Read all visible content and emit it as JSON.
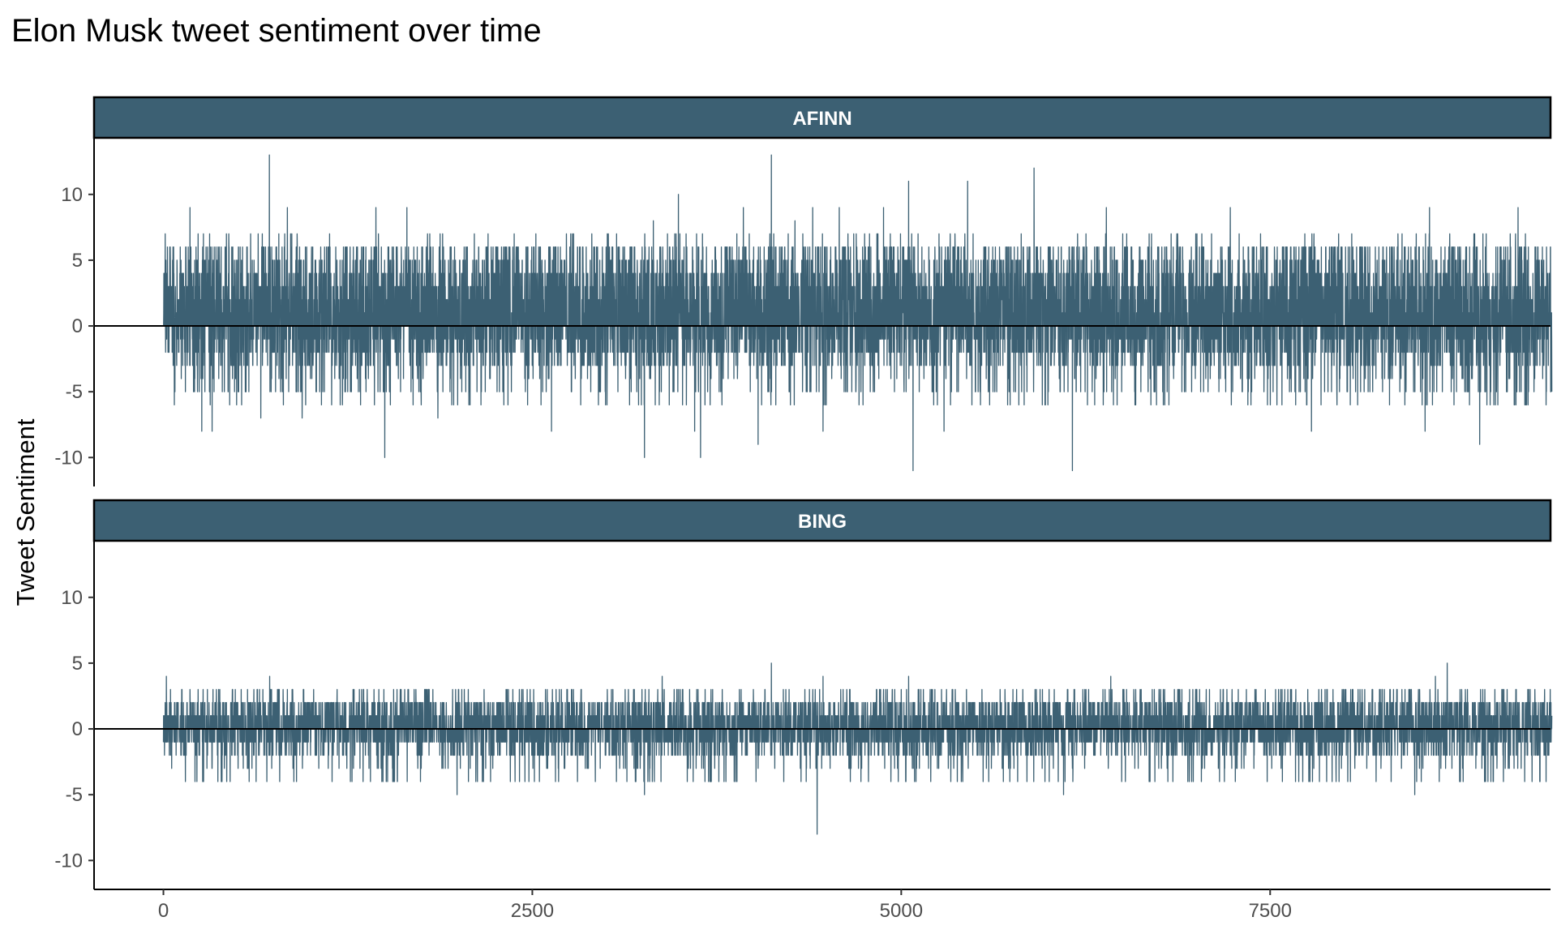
{
  "chart_data": {
    "type": "line",
    "title": "Elon Musk tweet sentiment over time",
    "xlabel": "",
    "ylabel": "Tweet Sentiment",
    "xlim": [
      -470,
      9400
    ],
    "ylim": [
      -12.2,
      14.3
    ],
    "x_ticks": [
      {
        "value": 0,
        "label": "0"
      },
      {
        "value": 2500,
        "label": "2500"
      },
      {
        "value": 5000,
        "label": "5000"
      },
      {
        "value": 7500,
        "label": "7500"
      }
    ],
    "y_ticks": [
      {
        "value": 10,
        "label": "10"
      },
      {
        "value": 5,
        "label": "5"
      },
      {
        "value": 0,
        "label": "0"
      },
      {
        "value": -5,
        "label": "-5"
      },
      {
        "value": -10,
        "label": "-10"
      }
    ],
    "grid": false,
    "reference_line": 0,
    "color": "#3c6073",
    "n_points": 9410,
    "panels": [
      {
        "name": "AFINN",
        "typical_min": -3,
        "typical_max": 4,
        "peaks": [
          {
            "x": 718,
            "y": 13
          },
          {
            "x": 4120,
            "y": 13
          },
          {
            "x": 5900,
            "y": 12
          },
          {
            "x": 5050,
            "y": 11
          },
          {
            "x": 5450,
            "y": 11
          },
          {
            "x": 180,
            "y": 9
          },
          {
            "x": 840,
            "y": 9
          },
          {
            "x": 940,
            "y": 9
          },
          {
            "x": 1440,
            "y": 9
          },
          {
            "x": 1650,
            "y": 9
          },
          {
            "x": 3490,
            "y": 10
          },
          {
            "x": 3930,
            "y": 9
          },
          {
            "x": 4400,
            "y": 9
          },
          {
            "x": 4580,
            "y": 9
          },
          {
            "x": 4880,
            "y": 9
          },
          {
            "x": 6390,
            "y": 9
          },
          {
            "x": 7230,
            "y": 9
          },
          {
            "x": 8580,
            "y": 9
          },
          {
            "x": 9180,
            "y": 9
          },
          {
            "x": 3320,
            "y": 8
          },
          {
            "x": 4280,
            "y": 8
          }
        ],
        "troughs": [
          {
            "x": 6160,
            "y": -11
          },
          {
            "x": 5080,
            "y": -11
          },
          {
            "x": 1500,
            "y": -10
          },
          {
            "x": 3260,
            "y": -10
          },
          {
            "x": 3640,
            "y": -10
          },
          {
            "x": 4030,
            "y": -9
          },
          {
            "x": 8920,
            "y": -9
          },
          {
            "x": 260,
            "y": -8
          },
          {
            "x": 330,
            "y": -8
          },
          {
            "x": 2630,
            "y": -8
          },
          {
            "x": 3600,
            "y": -8
          },
          {
            "x": 4470,
            "y": -8
          },
          {
            "x": 5290,
            "y": -8
          },
          {
            "x": 7780,
            "y": -8
          },
          {
            "x": 1860,
            "y": -7
          },
          {
            "x": 940,
            "y": -7
          },
          {
            "x": 660,
            "y": -7
          },
          {
            "x": 8550,
            "y": -8
          }
        ]
      },
      {
        "name": "BING",
        "typical_min": -2,
        "typical_max": 2,
        "peaks": [
          {
            "x": 4120,
            "y": 5
          },
          {
            "x": 8700,
            "y": 5
          },
          {
            "x": 20,
            "y": 4
          },
          {
            "x": 720,
            "y": 4
          },
          {
            "x": 3380,
            "y": 4
          },
          {
            "x": 4470,
            "y": 4
          },
          {
            "x": 5050,
            "y": 4
          },
          {
            "x": 6420,
            "y": 4
          },
          {
            "x": 8620,
            "y": 4
          }
        ],
        "troughs": [
          {
            "x": 4430,
            "y": -8
          },
          {
            "x": 1990,
            "y": -5
          },
          {
            "x": 3260,
            "y": -5
          },
          {
            "x": 6100,
            "y": -5
          },
          {
            "x": 8480,
            "y": -5
          },
          {
            "x": 3590,
            "y": -4
          },
          {
            "x": 2450,
            "y": -4
          },
          {
            "x": 9370,
            "y": -4
          },
          {
            "x": 1510,
            "y": -4
          },
          {
            "x": 5200,
            "y": -4
          }
        ]
      }
    ]
  }
}
